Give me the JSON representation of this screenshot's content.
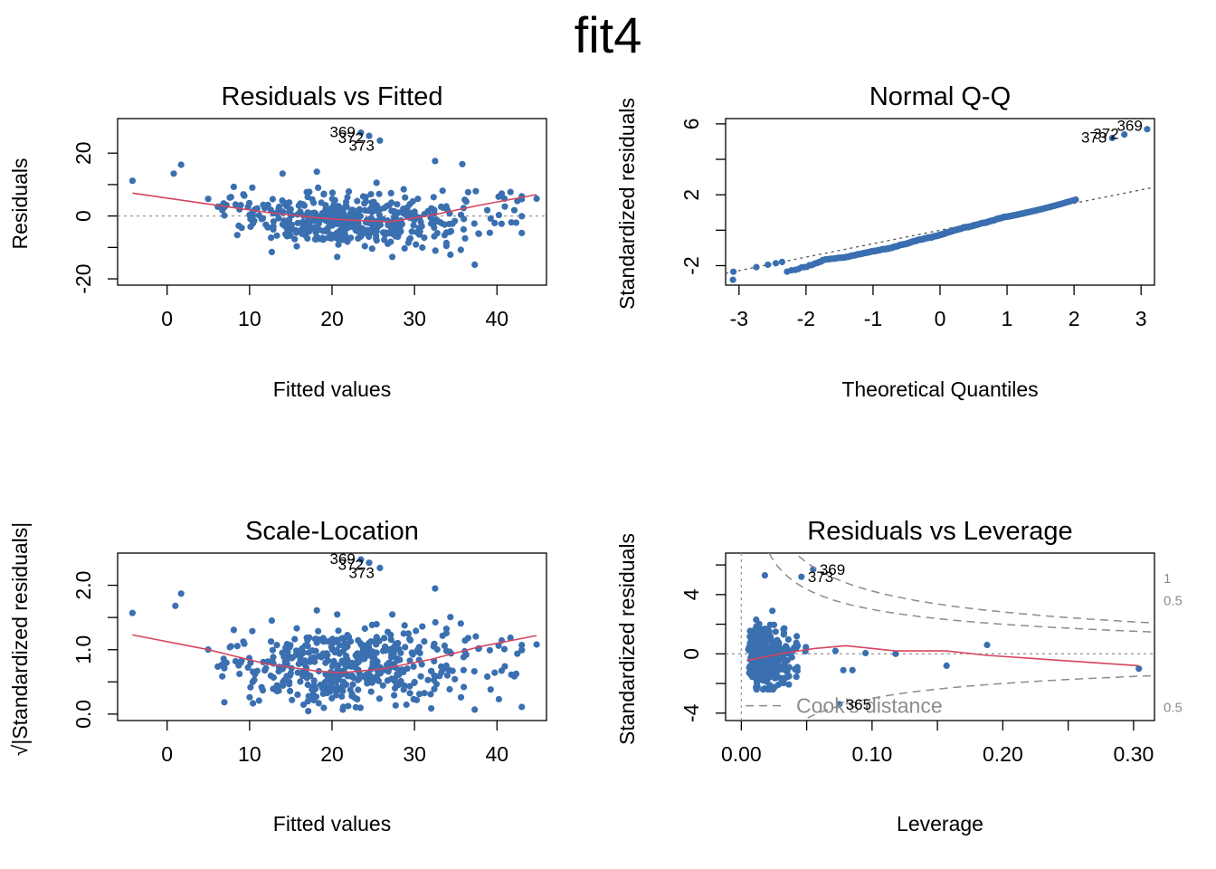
{
  "title": "fit4",
  "colors": {
    "points": "#3a6fb0",
    "smoother": "#d6455f",
    "reference": "#9a9a9a",
    "cooks": "#8c8c8c"
  },
  "chart_data": [
    {
      "type": "scatter",
      "title": "Residuals vs Fitted",
      "xlabel": "Fitted values",
      "ylabel": "Residuals",
      "xlim": [
        -6,
        46
      ],
      "ylim": [
        -22,
        31
      ],
      "xticks": [
        0,
        10,
        20,
        30,
        40
      ],
      "xtick_labels": [
        "0",
        "10",
        "20",
        "30",
        "40"
      ],
      "yticks": [
        -20,
        -10,
        0,
        10,
        20
      ],
      "ytick_labels": [
        "-20",
        "",
        "0",
        "",
        "20"
      ],
      "hline": 0,
      "labeled_points": [
        {
          "label": "369",
          "x": 23.5,
          "y": 26.5
        },
        {
          "label": "372",
          "x": 24.5,
          "y": 25.5
        },
        {
          "label": "373",
          "x": 25.8,
          "y": 24.0
        }
      ],
      "extra_points": [
        {
          "x": -4.2,
          "y": 11.2
        },
        {
          "x": 0.8,
          "y": 13.5
        },
        {
          "x": 1.7,
          "y": 16.3
        },
        {
          "x": 37.3,
          "y": -15.5
        },
        {
          "x": 32.5,
          "y": 17.5
        },
        {
          "x": 35.8,
          "y": 16.5
        },
        {
          "x": 14.0,
          "y": 13.5
        },
        {
          "x": 44.8,
          "y": 5.5
        }
      ],
      "smoother": {
        "x": [
          -4.2,
          5,
          12,
          18,
          22,
          27,
          32,
          38,
          44.8
        ],
        "y": [
          7.3,
          3.8,
          1.2,
          -0.5,
          -1.3,
          -1.8,
          0.2,
          3.5,
          6.8
        ]
      }
    },
    {
      "type": "scatter",
      "title": "Normal Q-Q",
      "xlabel": "Theoretical Quantiles",
      "ylabel": "Standardized residuals",
      "xlim": [
        -3.2,
        3.2
      ],
      "ylim": [
        -3.1,
        6.3
      ],
      "xticks": [
        -3,
        -2,
        -1,
        0,
        1,
        2,
        3
      ],
      "xtick_labels": [
        "-3",
        "-2",
        "-1",
        "0",
        "1",
        "2",
        "3"
      ],
      "yticks": [
        -2,
        0,
        2,
        4,
        6
      ],
      "ytick_labels": [
        "-2",
        "",
        "2",
        "",
        "6"
      ],
      "reference_line": {
        "intercept": 0.0,
        "slope": 0.76
      },
      "labeled_points": [
        {
          "label": "369",
          "x": 3.09,
          "y": 5.7
        },
        {
          "label": "372",
          "x": 2.75,
          "y": 5.4
        },
        {
          "label": "373",
          "x": 2.57,
          "y": 5.2
        }
      ],
      "extra_points": [
        {
          "x": -3.09,
          "y": -2.8
        }
      ]
    },
    {
      "type": "scatter",
      "title": "Scale-Location",
      "xlabel": "Fitted values",
      "ylabel": "√|Standardized residuals|",
      "xlim": [
        -6,
        46
      ],
      "ylim": [
        -0.1,
        2.5
      ],
      "xticks": [
        0,
        10,
        20,
        30,
        40
      ],
      "xtick_labels": [
        "0",
        "10",
        "20",
        "30",
        "40"
      ],
      "yticks": [
        0.0,
        0.5,
        1.0,
        1.5,
        2.0
      ],
      "ytick_labels": [
        "0.0",
        "",
        "1.0",
        "",
        "2.0"
      ],
      "labeled_points": [
        {
          "label": "369",
          "x": 23.5,
          "y": 2.4
        },
        {
          "label": "372",
          "x": 24.5,
          "y": 2.35
        },
        {
          "label": "373",
          "x": 25.8,
          "y": 2.27
        }
      ],
      "extra_points": [
        {
          "x": -4.2,
          "y": 1.57
        },
        {
          "x": 1.0,
          "y": 1.68
        },
        {
          "x": 1.7,
          "y": 1.87
        },
        {
          "x": 37.3,
          "y": 0.07
        },
        {
          "x": 32.5,
          "y": 1.95
        },
        {
          "x": 44.8,
          "y": 1.08
        }
      ],
      "smoother": {
        "x": [
          -4.2,
          5,
          12,
          18,
          21,
          26,
          32,
          38,
          44.8
        ],
        "y": [
          1.23,
          1.0,
          0.78,
          0.67,
          0.64,
          0.7,
          0.85,
          1.05,
          1.22
        ]
      }
    },
    {
      "type": "scatter",
      "title": "Residuals vs Leverage",
      "xlabel": "Leverage",
      "ylabel": "Standardized residuals",
      "xlim": [
        -0.012,
        0.316
      ],
      "ylim": [
        -4.5,
        6.8
      ],
      "xticks": [
        0.0,
        0.1,
        0.2,
        0.3
      ],
      "xtick_labels": [
        "0.00",
        "0.10",
        "0.20",
        "0.30"
      ],
      "xminor_ticks": [
        0.05,
        0.15,
        0.25
      ],
      "yticks": [
        -4,
        -2,
        0,
        2,
        4,
        6
      ],
      "ytick_labels": [
        "-4",
        "",
        "0",
        "",
        "4",
        ""
      ],
      "hline": 0,
      "vline": 0,
      "cooks_levels": [
        "1",
        "0.5",
        "0.5"
      ],
      "cooks_text": "Cook's distance",
      "labeled_points": [
        {
          "label": "369",
          "x": 0.055,
          "y": 5.7
        },
        {
          "label": "373",
          "x": 0.046,
          "y": 5.2
        },
        {
          "label": "365",
          "x": 0.075,
          "y": -3.4
        }
      ],
      "extra_points": [
        {
          "x": 0.304,
          "y": -1.0
        },
        {
          "x": 0.188,
          "y": 0.6
        },
        {
          "x": 0.157,
          "y": -0.8
        },
        {
          "x": 0.118,
          "y": 0.0
        },
        {
          "x": 0.095,
          "y": 0.05
        },
        {
          "x": 0.018,
          "y": 5.3
        },
        {
          "x": 0.078,
          "y": -1.1
        },
        {
          "x": 0.085,
          "y": -1.1
        },
        {
          "x": 0.072,
          "y": 0.2
        }
      ],
      "smoother": {
        "x": [
          0.004,
          0.03,
          0.055,
          0.08,
          0.118,
          0.157,
          0.188,
          0.304
        ],
        "y": [
          -0.45,
          0.0,
          0.35,
          0.55,
          0.2,
          0.2,
          -0.1,
          -0.8
        ]
      }
    }
  ]
}
